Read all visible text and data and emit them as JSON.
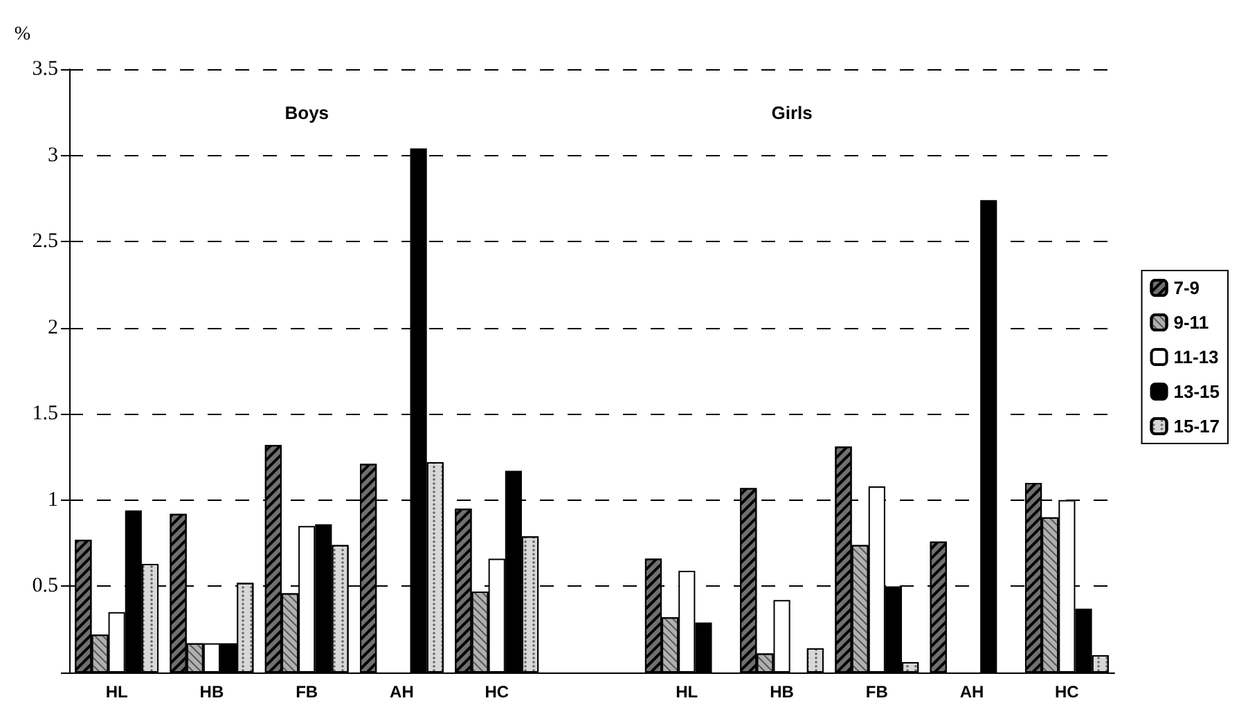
{
  "chart_data": {
    "type": "bar",
    "ylabel": "%",
    "categories": [
      "HL",
      "HB",
      "FB",
      "AH",
      "HC",
      null,
      "HL",
      "HB",
      "FB",
      "AH",
      "HC"
    ],
    "series": [
      {
        "name": "7-9",
        "color": "#707070",
        "values": [
          0.77,
          0.92,
          1.32,
          1.21,
          0.95,
          null,
          0.66,
          1.07,
          1.31,
          0.76,
          1.1
        ]
      },
      {
        "name": "9-11",
        "color": "#b0b0b0",
        "values": [
          0.22,
          0.17,
          0.46,
          0,
          0.47,
          null,
          0.32,
          0.11,
          0.74,
          0,
          0.9
        ]
      },
      {
        "name": "11-13",
        "color": "#ffffff",
        "values": [
          0.35,
          0.17,
          0.85,
          0,
          0.66,
          null,
          0.59,
          0.42,
          1.08,
          0,
          1.0
        ]
      },
      {
        "name": "13-15",
        "color": "#000000",
        "values": [
          0.94,
          0.17,
          0.86,
          3.04,
          1.17,
          null,
          0.29,
          0,
          0.5,
          2.74,
          0.37
        ]
      },
      {
        "name": "15-17",
        "color": "#d8d8d8",
        "values": [
          0.63,
          0.52,
          0.74,
          1.22,
          0.79,
          null,
          0,
          0.14,
          0.06,
          0,
          0.1
        ]
      }
    ],
    "ylim": [
      0,
      3.5
    ],
    "yticks": [
      {
        "value": 0,
        "label": null
      },
      0.5,
      1,
      1.5,
      2,
      2.5,
      3,
      3.5
    ],
    "grid": "y",
    "legend": "right",
    "annotations": [
      "Boys",
      "Girls"
    ]
  }
}
